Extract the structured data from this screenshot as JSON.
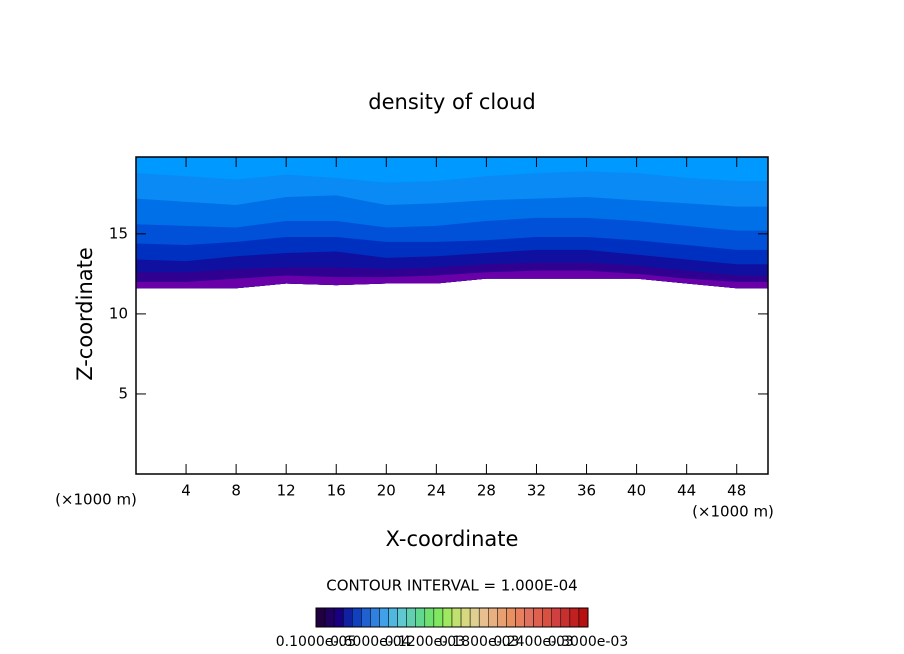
{
  "chart_data": {
    "type": "contour",
    "title": "density of cloud",
    "x_label": "X-coordinate",
    "y_label": "Z-coordinate",
    "x_unit_left": "(×1000 m)",
    "x_unit_right": "(×1000 m)",
    "contour_interval": "CONTOUR INTERVAL = 1.000E-04",
    "xlim": [
      0,
      50.5
    ],
    "ylim": [
      0,
      19.8
    ],
    "xticks": [
      4,
      8,
      12,
      16,
      20,
      24,
      28,
      32,
      36,
      40,
      44,
      48
    ],
    "yticks": [
      5,
      10,
      15
    ],
    "color": "#0099ff",
    "x": [
      0,
      4,
      8,
      12,
      16,
      20,
      24,
      28,
      32,
      36,
      40,
      44,
      48,
      50.5
    ],
    "base": [
      11.6,
      11.6,
      11.6,
      11.9,
      11.8,
      11.9,
      11.9,
      12.2,
      12.2,
      12.2,
      12.2,
      11.9,
      11.6,
      11.6
    ],
    "series": [
      {
        "color": "#0a8af5",
        "values": [
          18.8,
          18.6,
          18.4,
          18.7,
          18.5,
          18.2,
          18.3,
          18.6,
          18.8,
          18.9,
          18.8,
          18.5,
          18.3,
          18.3
        ]
      },
      {
        "color": "#0070e8",
        "values": [
          17.2,
          17.0,
          16.8,
          17.3,
          17.4,
          16.8,
          16.9,
          17.1,
          17.2,
          17.3,
          17.1,
          16.9,
          16.7,
          16.7
        ]
      },
      {
        "color": "#0050d8",
        "values": [
          15.6,
          15.5,
          15.4,
          15.8,
          15.8,
          15.4,
          15.5,
          15.8,
          16.0,
          16.0,
          15.8,
          15.5,
          15.2,
          15.2
        ]
      },
      {
        "color": "#0030c0",
        "values": [
          14.4,
          14.3,
          14.5,
          14.8,
          14.8,
          14.5,
          14.5,
          14.6,
          14.8,
          14.8,
          14.6,
          14.3,
          14.0,
          14.0
        ]
      },
      {
        "color": "#1010a0",
        "values": [
          13.4,
          13.3,
          13.6,
          13.8,
          13.9,
          13.5,
          13.6,
          13.8,
          14.0,
          14.0,
          13.7,
          13.4,
          13.1,
          13.1
        ]
      },
      {
        "color": "#300090",
        "values": [
          12.6,
          12.6,
          12.8,
          12.9,
          12.9,
          12.8,
          12.9,
          13.1,
          13.2,
          13.2,
          13.0,
          12.7,
          12.4,
          12.4
        ]
      },
      {
        "color": "#6a00a8",
        "values": [
          12.0,
          12.0,
          12.2,
          12.4,
          12.3,
          12.3,
          12.4,
          12.6,
          12.7,
          12.7,
          12.5,
          12.2,
          12.0,
          12.0
        ]
      }
    ],
    "colorbar": {
      "colors": [
        "#200040",
        "#200060",
        "#180080",
        "#1020a0",
        "#1040c0",
        "#2060d0",
        "#3080e0",
        "#40a0e8",
        "#50b8e0",
        "#60c8d0",
        "#60d0b0",
        "#60d890",
        "#70e070",
        "#80e860",
        "#a0e860",
        "#c0e070",
        "#d8d880",
        "#e0d090",
        "#e8c090",
        "#e8b080",
        "#e8a070",
        "#e89060",
        "#e88060",
        "#e07060",
        "#e06050",
        "#d85040",
        "#d04040",
        "#c83030",
        "#c02020",
        "#b81010"
      ],
      "ticks": [
        "0.1000e-05",
        "0.6000e-04",
        "0.1200e-03",
        "0.1800e-03",
        "0.2400e-03",
        "0.3000e-03"
      ]
    }
  }
}
